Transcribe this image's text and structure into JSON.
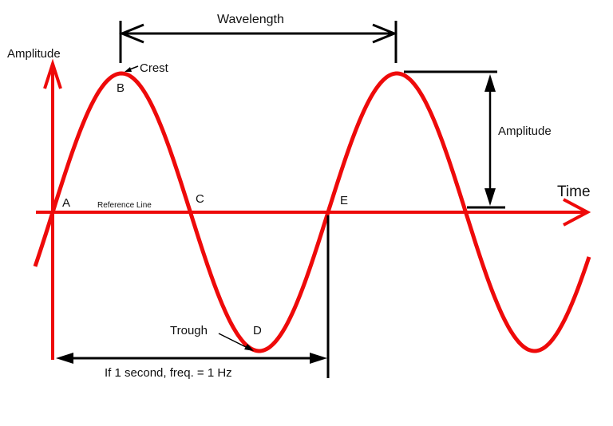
{
  "colors": {
    "wave": "#ee0a0a",
    "annotation": "#000000",
    "background": "#ffffff"
  },
  "labels": {
    "wavelength": "Wavelength",
    "y_axis": "Amplitude",
    "amplitude_marker": "Amplitude",
    "x_axis": "Time",
    "crest": "Crest",
    "trough": "Trough",
    "reference_line": "Reference Line",
    "frequency_note": "If 1 second, freq. = 1 Hz"
  },
  "points": {
    "A": "A",
    "B": "B",
    "C": "C",
    "D": "D",
    "E": "E"
  },
  "chart_data": {
    "type": "line",
    "title": "",
    "xlabel": "Time",
    "ylabel": "Amplitude",
    "series": [
      {
        "name": "sine wave",
        "description": "Sine wave of two full periods starting at reference line",
        "key_points": [
          {
            "label": "A",
            "phase": "zero crossing (rising)",
            "x": 0,
            "y": 0
          },
          {
            "label": "B",
            "phase": "crest",
            "x": 0.25,
            "y": 1
          },
          {
            "label": "C",
            "phase": "zero crossing (falling)",
            "x": 0.5,
            "y": 0
          },
          {
            "label": "D",
            "phase": "trough",
            "x": 0.75,
            "y": -1
          },
          {
            "label": "E",
            "phase": "zero crossing (rising)",
            "x": 1.0,
            "y": 0
          }
        ]
      }
    ],
    "annotations": [
      "Wavelength: crest B to next crest",
      "Amplitude: crest height above reference line",
      "If 1 second, freq. = 1 Hz: span A to E"
    ]
  }
}
